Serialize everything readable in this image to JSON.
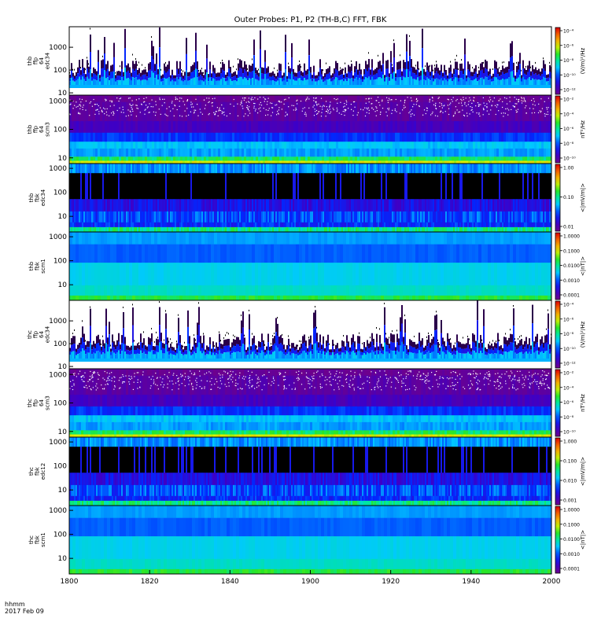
{
  "title": "Outer Probes: P1, P2 (TH-B,C) FFT, FBK",
  "time_axis": {
    "ticks": [
      "1800",
      "1820",
      "1840",
      "1900",
      "1920",
      "1940",
      "2000"
    ],
    "label_line1": "hhmm",
    "label_line2": "2017 Feb 09"
  },
  "chart_data": [
    {
      "type": "heatmap",
      "ylabel": [
        "thb",
        "ffp",
        "64",
        "edc34"
      ],
      "y_ticks": [
        "10",
        "100",
        "1000"
      ],
      "y_log_range": [
        0.9,
        3.9
      ],
      "colorbar_ticks": [
        "10⁻⁴",
        "10⁻⁶",
        "10⁻⁸",
        "10⁻¹⁰",
        "10⁻¹²"
      ],
      "colorbar_label": "(V/m)²/Hz",
      "style": "spiky"
    },
    {
      "type": "heatmap",
      "ylabel": [
        "thb",
        "ffp",
        "64",
        "scm3"
      ],
      "y_ticks": [
        "10",
        "100",
        "1000"
      ],
      "y_log_range": [
        0.8,
        3.2
      ],
      "colorbar_ticks": [
        "10⁻²",
        "10⁻⁴",
        "10⁻⁶",
        "10⁻⁸",
        "10⁻¹⁰"
      ],
      "colorbar_label": "nT²/Hz",
      "style": "scm"
    },
    {
      "type": "heatmap",
      "ylabel": [
        "thb",
        "fbk",
        "edc34"
      ],
      "y_ticks": [
        "10",
        "100",
        "1000"
      ],
      "y_log_range": [
        0.35,
        3.2
      ],
      "colorbar_ticks": [
        "1.00",
        "0.10",
        "0.01"
      ],
      "colorbar_label": "<|mV/m|>",
      "style": "fbk-e"
    },
    {
      "type": "heatmap",
      "ylabel": [
        "thb",
        "fbk",
        "scm1"
      ],
      "y_ticks": [
        "10",
        "100",
        "1000"
      ],
      "y_log_range": [
        0.35,
        3.2
      ],
      "colorbar_ticks": [
        "1.0000",
        "0.1000",
        "0.0100",
        "0.0010",
        "0.0001"
      ],
      "colorbar_label": "<|nT|>",
      "style": "fbk-b"
    },
    {
      "type": "heatmap",
      "ylabel": [
        "thc",
        "ffp",
        "64",
        "edc34"
      ],
      "y_ticks": [
        "10",
        "100",
        "1000"
      ],
      "y_log_range": [
        0.9,
        3.9
      ],
      "colorbar_ticks": [
        "10⁻⁴",
        "10⁻⁶",
        "10⁻⁸",
        "10⁻¹⁰",
        "10⁻¹²"
      ],
      "colorbar_label": "(V/m)²/Hz",
      "style": "spiky"
    },
    {
      "type": "heatmap",
      "ylabel": [
        "thc",
        "ffp",
        "64",
        "scm3"
      ],
      "y_ticks": [
        "10",
        "100",
        "1000"
      ],
      "y_log_range": [
        0.8,
        3.2
      ],
      "colorbar_ticks": [
        "10⁻²",
        "10⁻⁴",
        "10⁻⁶",
        "10⁻⁸",
        "10⁻¹⁰"
      ],
      "colorbar_label": "nT²/Hz",
      "style": "scm"
    },
    {
      "type": "heatmap",
      "ylabel": [
        "thc",
        "fbk",
        "edc12"
      ],
      "y_ticks": [
        "10",
        "100",
        "1000"
      ],
      "y_log_range": [
        0.35,
        3.2
      ],
      "colorbar_ticks": [
        "1.000",
        "0.100",
        "0.010",
        "0.001"
      ],
      "colorbar_label": "<|mV/m|>",
      "style": "fbk-e"
    },
    {
      "type": "heatmap",
      "ylabel": [
        "thc",
        "fbk",
        "scm1"
      ],
      "y_ticks": [
        "10",
        "100",
        "1000"
      ],
      "y_log_range": [
        0.35,
        3.2
      ],
      "colorbar_ticks": [
        "1.0000",
        "0.1000",
        "0.0100",
        "0.0010",
        "0.0001"
      ],
      "colorbar_label": "<|nT|>",
      "style": "fbk-b"
    }
  ]
}
